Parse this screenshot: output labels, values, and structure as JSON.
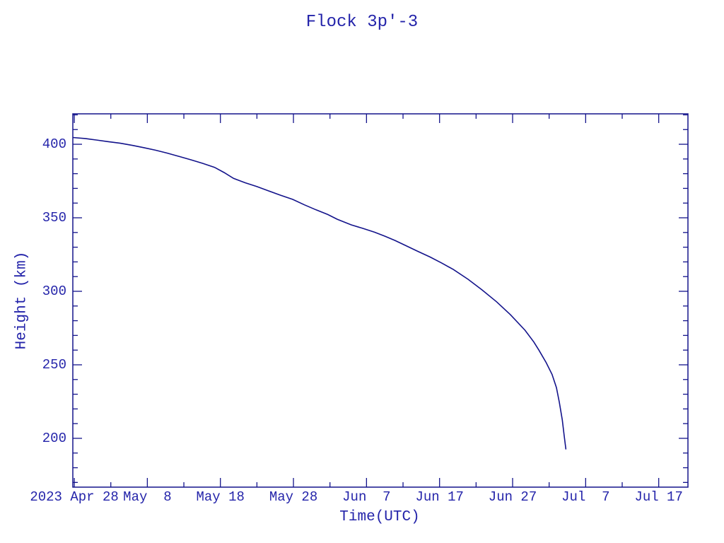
{
  "colors": {
    "text": "#2424aa",
    "line": "#13138b"
  },
  "chart_data": {
    "type": "line",
    "title": "Flock 3p'-3",
    "xlabel": "Time(UTC)",
    "ylabel": "Height (km)",
    "x_unit": "days since 2023-04-28 00:00 UTC",
    "xlim": [
      -0.2,
      84.0
    ],
    "ylim": [
      166.8,
      420.7
    ],
    "grid": false,
    "legend": null,
    "x_major_ticks": [
      {
        "day": 0,
        "label": "2023 Apr 28"
      },
      {
        "day": 10,
        "label": "May  8"
      },
      {
        "day": 20,
        "label": "May 18"
      },
      {
        "day": 30,
        "label": "May 28"
      },
      {
        "day": 40,
        "label": "Jun  7"
      },
      {
        "day": 50,
        "label": "Jun 17"
      },
      {
        "day": 60,
        "label": "Jun 27"
      },
      {
        "day": 70,
        "label": "Jul  7"
      },
      {
        "day": 80,
        "label": "Jul 17"
      }
    ],
    "x_minor_tick_days": [
      5,
      15,
      25,
      35,
      45,
      55,
      65,
      75
    ],
    "y_major_ticks": [
      {
        "value": 200,
        "label": "200"
      },
      {
        "value": 250,
        "label": "250"
      },
      {
        "value": 300,
        "label": "300"
      },
      {
        "value": 350,
        "label": "350"
      },
      {
        "value": 400,
        "label": "400"
      }
    ],
    "y_minor_tick_step": 10,
    "points": [
      [
        -0.2,
        404.6
      ],
      [
        1.5,
        403.9
      ],
      [
        3.0,
        402.9
      ],
      [
        4.6,
        401.8
      ],
      [
        6.3,
        400.7
      ],
      [
        8.0,
        399.2
      ],
      [
        9.5,
        397.7
      ],
      [
        11.1,
        396.0
      ],
      [
        12.7,
        394.0
      ],
      [
        14.3,
        391.8
      ],
      [
        16.0,
        389.4
      ],
      [
        17.6,
        387.0
      ],
      [
        19.2,
        384.3
      ],
      [
        20.5,
        380.8
      ],
      [
        21.8,
        376.8
      ],
      [
        23.4,
        373.8
      ],
      [
        25.0,
        371.2
      ],
      [
        26.6,
        368.3
      ],
      [
        28.2,
        365.4
      ],
      [
        29.9,
        362.5
      ],
      [
        31.5,
        358.8
      ],
      [
        33.1,
        355.4
      ],
      [
        34.7,
        352.2
      ],
      [
        36.0,
        349.0
      ],
      [
        37.9,
        345.2
      ],
      [
        39.5,
        342.8
      ],
      [
        41.1,
        340.2
      ],
      [
        42.5,
        337.5
      ],
      [
        43.9,
        334.6
      ],
      [
        45.4,
        331.0
      ],
      [
        47.0,
        327.2
      ],
      [
        48.7,
        323.3
      ],
      [
        50.3,
        319.2
      ],
      [
        51.9,
        314.8
      ],
      [
        53.9,
        308.2
      ],
      [
        55.8,
        301.0
      ],
      [
        57.8,
        292.9
      ],
      [
        59.7,
        284.1
      ],
      [
        61.7,
        273.5
      ],
      [
        62.9,
        265.5
      ],
      [
        63.6,
        260.0
      ],
      [
        64.6,
        251.5
      ],
      [
        65.4,
        243.5
      ],
      [
        66.0,
        234.5
      ],
      [
        66.4,
        224.5
      ],
      [
        66.8,
        212.5
      ],
      [
        67.05,
        202.0
      ],
      [
        67.3,
        192.5
      ]
    ]
  }
}
